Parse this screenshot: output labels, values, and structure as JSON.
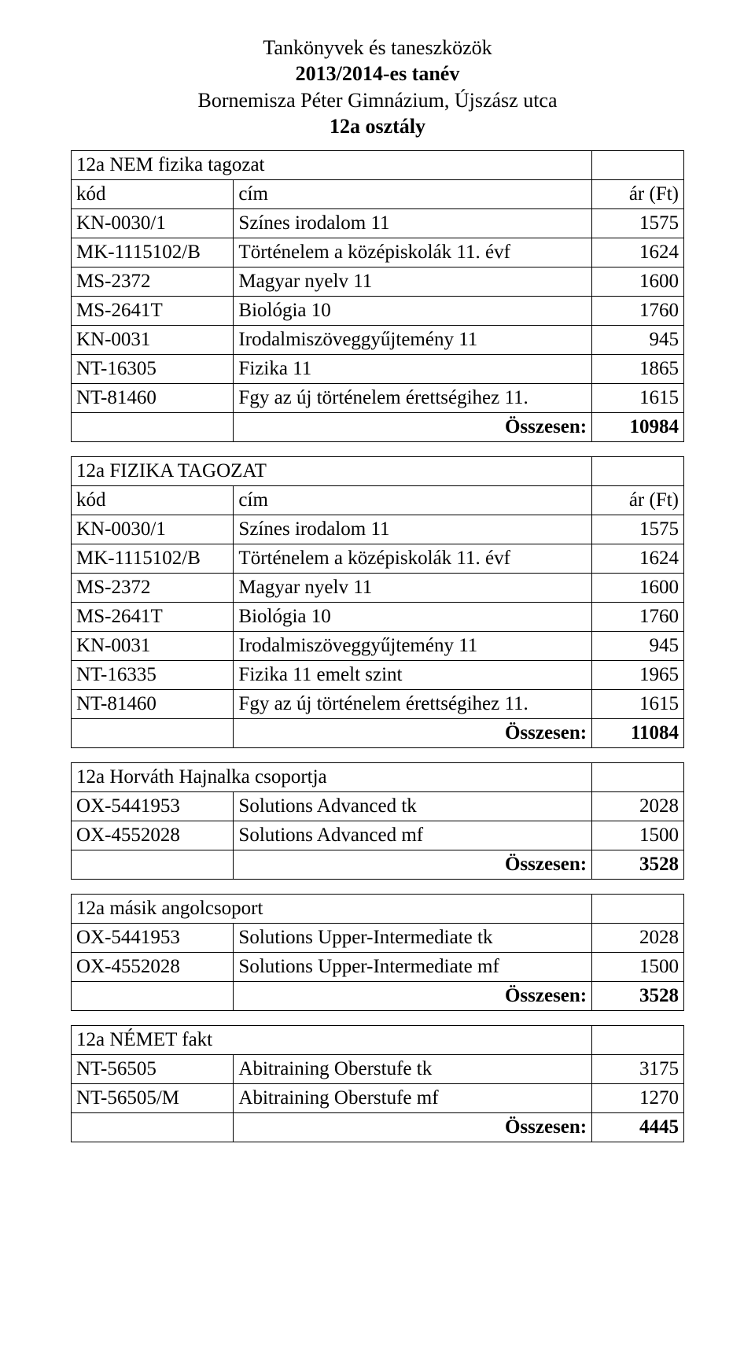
{
  "header": {
    "line1": "Tankönyvek és taneszközök",
    "line2": "2013/2014-es tanév",
    "line3": "Bornemisza Péter Gimnázium, Újszász utca",
    "line4": "12a osztály"
  },
  "labels": {
    "kod": "kód",
    "cim": "cím",
    "ar": "ár (Ft)",
    "osszesen": "Összesen:"
  },
  "tables": [
    {
      "section_title": "12a NEM fizika tagozat",
      "has_header_row": true,
      "rows": [
        {
          "code": "KN-0030/1",
          "title": "Színes irodalom 11",
          "price": "1575"
        },
        {
          "code": "MK-1115102/B",
          "title": "Történelem a középiskolák 11. évf",
          "price": "1624"
        },
        {
          "code": "MS-2372",
          "title": "Magyar nyelv 11",
          "price": "1600"
        },
        {
          "code": "MS-2641T",
          "title": "Biológia 10",
          "price": "1760"
        },
        {
          "code": "KN-0031",
          "title": "Irodalmiszöveggyűjtemény 11",
          "price": "945"
        },
        {
          "code": "NT-16305",
          "title": "Fizika 11",
          "price": "1865"
        },
        {
          "code": "NT-81460",
          "title": "Fgy az új történelem érettségihez 11.",
          "price": "1615"
        }
      ],
      "total": "10984"
    },
    {
      "section_title": "12a FIZIKA TAGOZAT",
      "has_header_row": true,
      "rows": [
        {
          "code": "KN-0030/1",
          "title": "Színes irodalom 11",
          "price": "1575"
        },
        {
          "code": "MK-1115102/B",
          "title": "Történelem a középiskolák 11. évf",
          "price": "1624"
        },
        {
          "code": "MS-2372",
          "title": "Magyar nyelv 11",
          "price": "1600"
        },
        {
          "code": "MS-2641T",
          "title": "Biológia 10",
          "price": "1760"
        },
        {
          "code": "KN-0031",
          "title": "Irodalmiszöveggyűjtemény 11",
          "price": "945"
        },
        {
          "code": "NT-16335",
          "title": "Fizika 11 emelt szint",
          "price": "1965"
        },
        {
          "code": "NT-81460",
          "title": "Fgy az új történelem érettségihez 11.",
          "price": "1615"
        }
      ],
      "total": "11084"
    },
    {
      "section_title": "12a Horváth Hajnalka csoportja",
      "has_header_row": false,
      "rows": [
        {
          "code": "OX-5441953",
          "title": "Solutions Advanced tk",
          "price": "2028"
        },
        {
          "code": "OX-4552028",
          "title": "Solutions Advanced mf",
          "price": "1500"
        }
      ],
      "total": "3528"
    },
    {
      "section_title": "12a másik angolcsoport",
      "has_header_row": false,
      "rows": [
        {
          "code": "OX-5441953",
          "title": "Solutions Upper-Intermediate tk",
          "price": "2028"
        },
        {
          "code": "OX-4552028",
          "title": "Solutions Upper-Intermediate mf",
          "price": "1500"
        }
      ],
      "total": "3528"
    },
    {
      "section_title": "12a NÉMET fakt",
      "has_header_row": false,
      "rows": [
        {
          "code": "NT-56505",
          "title": "Abitraining Oberstufe tk",
          "price": "3175"
        },
        {
          "code": "NT-56505/M",
          "title": "Abitraining Oberstufe mf",
          "price": "1270"
        }
      ],
      "total": "4445"
    }
  ]
}
